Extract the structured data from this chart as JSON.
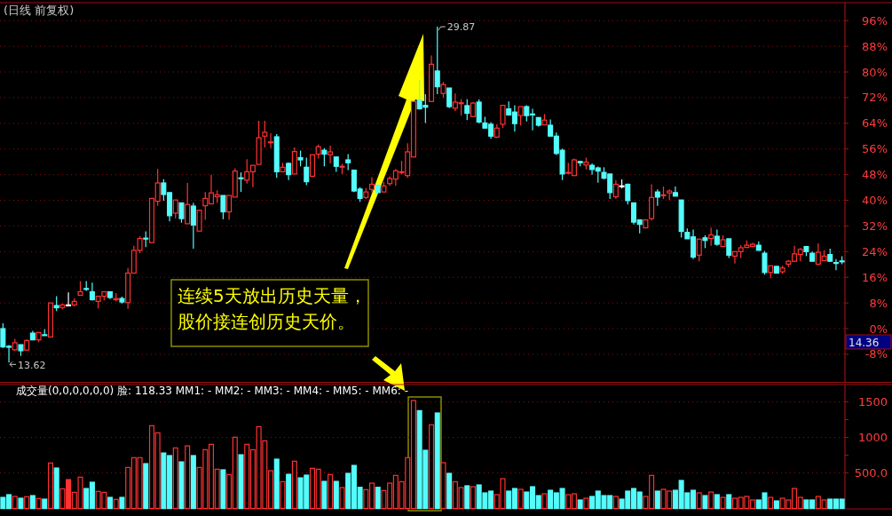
{
  "chart_data": [
    {
      "type": "candlestick",
      "title": "(日线 前复权)",
      "categories": [
        null,
        null,
        null,
        null,
        null,
        null,
        null,
        null,
        null,
        null,
        null,
        null,
        null,
        null,
        null,
        null,
        null,
        null,
        null,
        null,
        null,
        null,
        null,
        null,
        null,
        null,
        null,
        null,
        null,
        null,
        null,
        null,
        null,
        null,
        null,
        null,
        null,
        null,
        null,
        null,
        null,
        null,
        null,
        null,
        null,
        null,
        null,
        null,
        null,
        null,
        null,
        null,
        null,
        null,
        null,
        null,
        null,
        null,
        null,
        null,
        null,
        null,
        null,
        null,
        null,
        null,
        null,
        null,
        null,
        null,
        null,
        null,
        null,
        null,
        null,
        null,
        null,
        null,
        null,
        null,
        null,
        null,
        null,
        null,
        null,
        null,
        null,
        null,
        null,
        null,
        null,
        null,
        null,
        null,
        null,
        null,
        null,
        null,
        null,
        null,
        null,
        null,
        null,
        null,
        null,
        null,
        null,
        null,
        null,
        null,
        null,
        null,
        null,
        null,
        null,
        null,
        null,
        null,
        null,
        null,
        null,
        null,
        null,
        null,
        null,
        null,
        null,
        null,
        null,
        null,
        null,
        null,
        null,
        null,
        null,
        null,
        null,
        null,
        null,
        null,
        null,
        null
      ],
      "ohlc": [
        [
          0,
          1.7,
          -6.0,
          -5.7
        ],
        [
          -5.5,
          -5.1,
          -10.6,
          -5.8
        ],
        [
          -6.6,
          -3.2,
          -6.9,
          -4.4
        ],
        [
          -5.0,
          -5.0,
          -8.5,
          -6.9
        ],
        [
          -6.7,
          -3.4,
          -6.7,
          -3.7
        ],
        [
          -1.4,
          -0.7,
          -3.5,
          -3.5
        ],
        [
          -3.5,
          -1.2,
          -4.2,
          -1.2
        ],
        [
          -1.9,
          -0.2,
          -2.1,
          -2.1
        ],
        [
          -2.6,
          8.0,
          -2.6,
          8.0
        ],
        [
          7.2,
          10.1,
          5.5,
          6.5
        ],
        [
          6.6,
          7.8,
          6.0,
          7.4
        ],
        [
          7.4,
          11.3,
          6.9,
          7.4
        ],
        [
          7.4,
          9.4,
          6.9,
          8.5
        ],
        [
          10.4,
          14.8,
          10.4,
          11.5
        ],
        [
          12.5,
          14.8,
          11.8,
          12.3
        ],
        [
          11.5,
          14.3,
          8.8,
          9.0
        ],
        [
          8.5,
          10.1,
          6.3,
          10.1
        ],
        [
          10.1,
          11.5,
          8.8,
          11.5
        ],
        [
          11.5,
          11.5,
          9.2,
          9.7
        ],
        [
          9.0,
          11.1,
          8.5,
          9.4
        ],
        [
          9.4,
          10.0,
          7.8,
          8.3
        ],
        [
          8.1,
          18.9,
          6.2,
          17.3
        ],
        [
          17.3,
          25.8,
          17.3,
          24.4
        ],
        [
          24.4,
          28.8,
          23.5,
          28.1
        ],
        [
          28.2,
          30.3,
          25.4,
          28.0
        ],
        [
          26.8,
          40.6,
          26.8,
          40.6
        ],
        [
          39.7,
          49.8,
          38.3,
          45.4
        ],
        [
          45.4,
          46.6,
          39.9,
          41.8
        ],
        [
          42.4,
          42.4,
          33.4,
          35.2
        ],
        [
          36.0,
          40.1,
          34.3,
          40.1
        ],
        [
          39.2,
          39.2,
          33.0,
          34.3
        ],
        [
          32.7,
          45.4,
          32.7,
          38.7
        ],
        [
          38.2,
          39.2,
          24.9,
          32.3
        ],
        [
          30.4,
          36.9,
          30.3,
          36.9
        ],
        [
          38.3,
          42.6,
          33.9,
          40.6
        ],
        [
          38.9,
          48.0,
          38.9,
          42.3
        ],
        [
          41.1,
          43.1,
          39.2,
          41.7
        ],
        [
          41.5,
          41.5,
          34.1,
          36.4
        ],
        [
          36.4,
          41.5,
          33.9,
          41.5
        ],
        [
          41.0,
          50.0,
          41.0,
          49.1
        ],
        [
          47.0,
          48.7,
          42.6,
          46.8
        ],
        [
          46.3,
          52.8,
          45.2,
          48.9
        ],
        [
          48.9,
          50.9,
          44.1,
          50.9
        ],
        [
          51.2,
          64.8,
          51.2,
          59.5
        ],
        [
          60.0,
          64.8,
          56.5,
          61.2
        ],
        [
          58.0,
          60.9,
          56.3,
          58.2
        ],
        [
          59.8,
          60.6,
          47.0,
          48.9
        ],
        [
          48.9,
          51.7,
          48.7,
          50.3
        ],
        [
          51.5,
          51.8,
          46.3,
          48.0
        ],
        [
          48.2,
          56.5,
          48.2,
          55.2
        ],
        [
          53.3,
          55.5,
          50.6,
          52.6
        ],
        [
          50.3,
          53.3,
          44.7,
          45.8
        ],
        [
          47.5,
          54.2,
          47.2,
          54.2
        ],
        [
          54.4,
          57.4,
          53.0,
          56.7
        ],
        [
          55.6,
          56.3,
          50.6,
          54.4
        ],
        [
          54.2,
          57.0,
          51.5,
          55.1
        ],
        [
          53.5,
          53.5,
          48.9,
          50.6
        ],
        [
          50.4,
          51.4,
          48.2,
          50.6
        ],
        [
          52.6,
          54.4,
          49.4,
          51.7
        ],
        [
          49.4,
          49.4,
          42.6,
          42.9
        ],
        [
          43.5,
          44.1,
          39.5,
          40.6
        ],
        [
          40.9,
          43.8,
          40.4,
          42.6
        ],
        [
          43.4,
          47.2,
          42.4,
          45.0
        ],
        [
          44.7,
          45.0,
          42.4,
          42.4
        ],
        [
          42.6,
          45.7,
          42.6,
          44.5
        ],
        [
          45.2,
          47.5,
          44.5,
          46.8
        ],
        [
          46.6,
          49.8,
          44.5,
          49.2
        ],
        [
          48.7,
          52.3,
          48.0,
          48.9
        ],
        [
          47.7,
          57.8,
          47.0,
          55.1
        ],
        [
          53.5,
          70.8,
          53.5,
          70.8
        ],
        [
          71.3,
          77.5,
          68.3,
          68.5
        ],
        [
          69.6,
          73.1,
          64.1,
          69.0
        ],
        [
          70.8,
          85.1,
          70.8,
          82.4
        ],
        [
          80.3,
          94.1,
          73.1,
          75.4
        ],
        [
          73.3,
          76.9,
          72.0,
          76.1
        ],
        [
          75.0,
          75.0,
          68.7,
          69.2
        ],
        [
          68.7,
          73.3,
          67.8,
          70.6
        ],
        [
          70.2,
          71.5,
          66.4,
          70.4
        ],
        [
          69.5,
          71.5,
          65.0,
          67.1
        ],
        [
          66.1,
          70.6,
          65.9,
          70.3
        ],
        [
          70.6,
          71.4,
          64.0,
          64.4
        ],
        [
          64.1,
          66.0,
          62.5,
          62.5
        ],
        [
          63.7,
          64.4,
          59.2,
          60.0
        ],
        [
          59.7,
          63.7,
          59.4,
          62.5
        ],
        [
          63.7,
          69.6,
          62.5,
          69.6
        ],
        [
          68.5,
          70.8,
          66.4,
          66.6
        ],
        [
          67.5,
          69.6,
          61.4,
          63.9
        ],
        [
          66.4,
          69.2,
          63.3,
          69.2
        ],
        [
          69.2,
          69.6,
          64.6,
          66.4
        ],
        [
          66.9,
          68.5,
          61.8,
          66.6
        ],
        [
          65.8,
          65.8,
          63.0,
          63.4
        ],
        [
          63.5,
          66.9,
          63.5,
          65.0
        ],
        [
          63.4,
          65.2,
          60.0,
          60.0
        ],
        [
          60.0,
          61.1,
          54.1,
          54.6
        ],
        [
          55.6,
          56.1,
          46.3,
          48.2
        ],
        [
          48.5,
          51.7,
          48.2,
          48.7
        ],
        [
          47.7,
          53.0,
          47.7,
          52.6
        ],
        [
          52.1,
          52.3,
          50.6,
          51.7
        ],
        [
          51.0,
          53.3,
          49.6,
          51.9
        ],
        [
          50.9,
          51.5,
          48.0,
          49.6
        ],
        [
          50.1,
          50.5,
          45.5,
          49.1
        ],
        [
          48.7,
          50.3,
          46.5,
          46.9
        ],
        [
          48.2,
          48.2,
          40.4,
          42.4
        ],
        [
          41.1,
          46.3,
          40.4,
          45.0
        ],
        [
          44.5,
          46.5,
          43.7,
          44.5
        ],
        [
          45.0,
          45.2,
          38.7,
          39.9
        ],
        [
          39.2,
          39.2,
          32.5,
          33.2
        ],
        [
          33.9,
          33.9,
          29.7,
          32.5
        ],
        [
          31.4,
          33.9,
          31.4,
          33.9
        ],
        [
          34.3,
          45.0,
          33.7,
          40.9
        ],
        [
          42.6,
          43.4,
          38.3,
          41.0
        ],
        [
          41.6,
          44.3,
          40.4,
          41.7
        ],
        [
          42.3,
          43.4,
          40.1,
          42.9
        ],
        [
          42.4,
          44.3,
          41.3,
          41.3
        ],
        [
          40.1,
          40.1,
          28.4,
          30.3
        ],
        [
          30.0,
          31.2,
          28.0,
          28.0
        ],
        [
          28.6,
          30.9,
          21.7,
          22.3
        ],
        [
          22.9,
          27.9,
          21.0,
          27.9
        ],
        [
          28.3,
          29.1,
          25.1,
          27.5
        ],
        [
          28.1,
          31.5,
          25.8,
          29.2
        ],
        [
          28.8,
          30.9,
          25.8,
          26.3
        ],
        [
          25.6,
          29.1,
          25.6,
          27.7
        ],
        [
          28.0,
          28.0,
          22.0,
          22.9
        ],
        [
          22.6,
          24.0,
          20.3,
          24.0
        ],
        [
          24.0,
          26.0,
          22.0,
          25.2
        ],
        [
          25.3,
          27.5,
          25.1,
          26.0
        ],
        [
          25.6,
          26.8,
          25.4,
          26.3
        ],
        [
          26.0,
          27.2,
          24.4,
          24.4
        ],
        [
          23.5,
          24.2,
          16.8,
          17.5
        ],
        [
          17.5,
          19.6,
          15.7,
          19.6
        ],
        [
          19.4,
          19.6,
          17.3,
          17.3
        ],
        [
          17.7,
          19.6,
          17.1,
          18.9
        ],
        [
          20.1,
          21.4,
          19.2,
          21.0
        ],
        [
          21.0,
          25.8,
          20.8,
          23.3
        ],
        [
          23.1,
          25.1,
          21.0,
          24.7
        ],
        [
          25.6,
          25.6,
          22.6,
          24.0
        ],
        [
          23.5,
          24.0,
          21.0,
          21.0
        ],
        [
          20.1,
          26.6,
          19.8,
          23.8
        ],
        [
          21.2,
          24.4,
          21.2,
          22.6
        ],
        [
          23.1,
          24.9,
          20.8,
          21.0
        ],
        [
          20.6,
          21.7,
          18.2,
          20.5
        ],
        [
          21.1,
          22.6,
          20.1,
          21.0
        ]
      ],
      "colors": [
        "#54fcfc",
        "#54fcfc",
        "#ff3232",
        "#54fcfc",
        "#ff3232",
        "#54fcfc",
        "#ff3232",
        "#54fcfc",
        "#ff3232",
        "#54fcfc",
        "#ff3232",
        "#ffffff",
        "#ff3232",
        "#ff3232",
        "#54fcfc",
        "#54fcfc",
        "#ff3232",
        "#ff3232",
        "#54fcfc",
        "#ff3232",
        "#54fcfc",
        "#ff3232",
        "#ff3232",
        "#ff3232",
        "#54fcfc",
        "#ff3232",
        "#ff3232",
        "#54fcfc",
        "#54fcfc",
        "#ff3232",
        "#54fcfc",
        "#ff3232",
        "#54fcfc",
        "#ff3232",
        "#ff3232",
        "#ff3232",
        "#ff3232",
        "#54fcfc",
        "#ff3232",
        "#ff3232",
        "#54fcfc",
        "#ff3232",
        "#ff3232",
        "#ff3232",
        "#ff3232",
        "#ff3232",
        "#54fcfc",
        "#ff3232",
        "#54fcfc",
        "#ff3232",
        "#54fcfc",
        "#54fcfc",
        "#ff3232",
        "#ff3232",
        "#54fcfc",
        "#ff3232",
        "#54fcfc",
        "#ff3232",
        "#54fcfc",
        "#54fcfc",
        "#54fcfc",
        "#ff3232",
        "#ff3232",
        "#54fcfc",
        "#ff3232",
        "#ff3232",
        "#ff3232",
        "#ff3232",
        "#ff3232",
        "#ff3232",
        "#54fcfc",
        "#54fcfc",
        "#ff3232",
        "#54fcfc",
        "#ff3232",
        "#54fcfc",
        "#ff3232",
        "#ff3232",
        "#54fcfc",
        "#ff3232",
        "#54fcfc",
        "#54fcfc",
        "#54fcfc",
        "#ff3232",
        "#ff3232",
        "#54fcfc",
        "#54fcfc",
        "#ff3232",
        "#54fcfc",
        "#54fcfc",
        "#54fcfc",
        "#ff3232",
        "#54fcfc",
        "#54fcfc",
        "#54fcfc",
        "#ff3232",
        "#ff3232",
        "#54fcfc",
        "#ff3232",
        "#54fcfc",
        "#54fcfc",
        "#54fcfc",
        "#54fcfc",
        "#ff3232",
        "#ffffff",
        "#54fcfc",
        "#54fcfc",
        "#54fcfc",
        "#ff3232",
        "#ff3232",
        "#54fcfc",
        "#ff3232",
        "#ff3232",
        "#54fcfc",
        "#54fcfc",
        "#54fcfc",
        "#54fcfc",
        "#ff3232",
        "#54fcfc",
        "#ff3232",
        "#54fcfc",
        "#ff3232",
        "#54fcfc",
        "#ff3232",
        "#ff3232",
        "#ff3232",
        "#ff3232",
        "#54fcfc",
        "#54fcfc",
        "#ff3232",
        "#54fcfc",
        "#ff3232",
        "#ff3232",
        "#ff3232",
        "#ff3232",
        "#54fcfc",
        "#54fcfc",
        "#ff3232",
        "#ff3232",
        "#54fcfc",
        "#54fcfc",
        "#54fcfc"
      ],
      "ylim": [
        -16.6,
        101.6
      ],
      "yticks": [
        {
          "value": 96,
          "label": "96%"
        },
        {
          "value": 88,
          "label": "88%"
        },
        {
          "value": 80,
          "label": "80%"
        },
        {
          "value": 72,
          "label": "72%"
        },
        {
          "value": 64,
          "label": "64%"
        },
        {
          "value": 56,
          "label": "56%"
        },
        {
          "value": 48,
          "label": "48%"
        },
        {
          "value": 40,
          "label": "40%"
        },
        {
          "value": 32,
          "label": "32%"
        },
        {
          "value": 24,
          "label": "24%"
        },
        {
          "value": 16,
          "label": "16%"
        },
        {
          "value": 8,
          "label": "8%"
        },
        {
          "value": 0,
          "label": "0%"
        },
        {
          "value": -8,
          "label": "-8%"
        }
      ],
      "grid": "y",
      "annotations": [
        "29.87",
        "13.62",
        "14.36",
        "连续5天放出历史天量，股价接连创历史天价。"
      ]
    },
    {
      "type": "bar",
      "title": "成交量(0,0,0,0,0,0) 脸: 118.33 MM1: - MM2: - MM3: - MM4: - MM5: - MM6: -",
      "categories": [
        null,
        null,
        null,
        null,
        null,
        null,
        null,
        null,
        null,
        null,
        null,
        null,
        null,
        null,
        null,
        null,
        null,
        null,
        null,
        null,
        null,
        null,
        null,
        null,
        null,
        null,
        null,
        null,
        null,
        null,
        null,
        null,
        null,
        null,
        null,
        null,
        null,
        null,
        null,
        null,
        null,
        null,
        null,
        null,
        null,
        null,
        null,
        null,
        null,
        null,
        null,
        null,
        null,
        null,
        null,
        null,
        null,
        null,
        null,
        null,
        null,
        null,
        null,
        null,
        null,
        null,
        null,
        null,
        null,
        null,
        null,
        null,
        null,
        null,
        null,
        null,
        null,
        null,
        null,
        null,
        null,
        null,
        null,
        null,
        null,
        null,
        null,
        null,
        null,
        null,
        null,
        null,
        null,
        null,
        null,
        null,
        null,
        null,
        null,
        null,
        null,
        null,
        null,
        null,
        null,
        null,
        null,
        null,
        null,
        null,
        null,
        null,
        null,
        null,
        null,
        null,
        null,
        null,
        null,
        null,
        null,
        null,
        null,
        null,
        null,
        null,
        null,
        null,
        null,
        null,
        null,
        null,
        null,
        null,
        null,
        null,
        null,
        null,
        null,
        null,
        null,
        null
      ],
      "values": [
        156,
        194,
        169,
        144,
        165,
        181,
        140,
        131,
        640,
        569,
        277,
        406,
        227,
        440,
        281,
        369,
        240,
        227,
        156,
        127,
        156,
        577,
        715,
        715,
        631,
        1165,
        1065,
        781,
        744,
        852,
        656,
        881,
        744,
        577,
        827,
        902,
        552,
        544,
        477,
        1002,
        756,
        902,
        827,
        1152,
        952,
        531,
        694,
        377,
        481,
        665,
        431,
        469,
        565,
        552,
        381,
        477,
        381,
        294,
        494,
        606,
        298,
        265,
        356,
        298,
        252,
        356,
        465,
        377,
        715,
        1519,
        1377,
        819,
        1177,
        1344,
        644,
        494,
        377,
        294,
        319,
        306,
        331,
        219,
        244,
        194,
        419,
        244,
        281,
        269,
        231,
        306,
        181,
        206,
        256,
        219,
        281,
        194,
        206,
        119,
        144,
        169,
        244,
        181,
        181,
        169,
        131,
        244,
        281,
        231,
        169,
        465,
        244,
        269,
        244,
        256,
        394,
        219,
        256,
        219,
        181,
        231,
        194,
        156,
        194,
        144,
        156,
        169,
        119,
        119,
        219,
        156,
        106,
        144,
        119,
        281,
        156,
        119,
        119,
        169,
        119,
        131,
        131,
        131
      ],
      "colors": [
        "#54fcfc",
        "#54fcfc",
        "#ff3232",
        "#54fcfc",
        "#ff3232",
        "#54fcfc",
        "#ff3232",
        "#54fcfc",
        "#ff3232",
        "#54fcfc",
        "#ff3232",
        "#ff3232",
        "#ff3232",
        "#ff3232",
        "#54fcfc",
        "#54fcfc",
        "#ff3232",
        "#ff3232",
        "#54fcfc",
        "#ff3232",
        "#54fcfc",
        "#ff3232",
        "#ff3232",
        "#ff3232",
        "#54fcfc",
        "#ff3232",
        "#ff3232",
        "#54fcfc",
        "#54fcfc",
        "#ff3232",
        "#54fcfc",
        "#ff3232",
        "#54fcfc",
        "#ff3232",
        "#ff3232",
        "#ff3232",
        "#ff3232",
        "#54fcfc",
        "#ff3232",
        "#ff3232",
        "#54fcfc",
        "#ff3232",
        "#ff3232",
        "#ff3232",
        "#ff3232",
        "#ff3232",
        "#54fcfc",
        "#ff3232",
        "#54fcfc",
        "#ff3232",
        "#54fcfc",
        "#54fcfc",
        "#ff3232",
        "#ff3232",
        "#54fcfc",
        "#ff3232",
        "#54fcfc",
        "#ff3232",
        "#54fcfc",
        "#54fcfc",
        "#54fcfc",
        "#ff3232",
        "#ff3232",
        "#54fcfc",
        "#ff3232",
        "#ff3232",
        "#ff3232",
        "#ff3232",
        "#ff3232",
        "#ff3232",
        "#54fcfc",
        "#54fcfc",
        "#ff3232",
        "#54fcfc",
        "#ff3232",
        "#54fcfc",
        "#ff3232",
        "#ff3232",
        "#54fcfc",
        "#ff3232",
        "#54fcfc",
        "#54fcfc",
        "#54fcfc",
        "#ff3232",
        "#ff3232",
        "#54fcfc",
        "#54fcfc",
        "#ff3232",
        "#54fcfc",
        "#54fcfc",
        "#54fcfc",
        "#ff3232",
        "#54fcfc",
        "#54fcfc",
        "#54fcfc",
        "#ff3232",
        "#ff3232",
        "#54fcfc",
        "#ff3232",
        "#54fcfc",
        "#54fcfc",
        "#54fcfc",
        "#54fcfc",
        "#ff3232",
        "#54fcfc",
        "#54fcfc",
        "#54fcfc",
        "#54fcfc",
        "#ff3232",
        "#ff3232",
        "#54fcfc",
        "#ff3232",
        "#ff3232",
        "#54fcfc",
        "#54fcfc",
        "#54fcfc",
        "#54fcfc",
        "#ff3232",
        "#54fcfc",
        "#ff3232",
        "#54fcfc",
        "#ff3232",
        "#54fcfc",
        "#ff3232",
        "#ff3232",
        "#ff3232",
        "#ff3232",
        "#54fcfc",
        "#54fcfc",
        "#ff3232",
        "#54fcfc",
        "#ff3232",
        "#ff3232",
        "#ff3232",
        "#ff3232",
        "#54fcfc",
        "#54fcfc",
        "#ff3232",
        "#ff3232",
        "#54fcfc",
        "#54fcfc",
        "#54fcfc"
      ],
      "ylim": [
        0,
        1744
      ],
      "yticks": [
        {
          "value": 500,
          "label": "500.0"
        },
        {
          "value": 750,
          "label": null
        },
        1000,
        {
          "value": 1250,
          "label": null
        },
        1500
      ],
      "grid": "y"
    }
  ]
}
